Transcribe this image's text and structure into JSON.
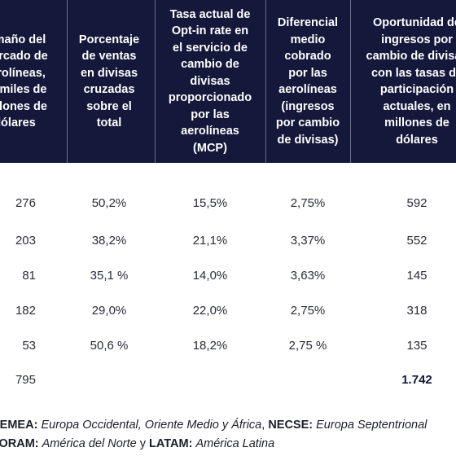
{
  "header": {
    "col0": "tamaño del\nmercado de\naerolíneas,\nen miles de\nmillones de\ndólares",
    "col1": "Porcentaje\nde ventas\nen divisas\ncruzadas\nsobre el\ntotal",
    "col2": "Tasa actual de\nOpt-in rate en\nel servicio de\ncambio de\ndivisas\nproporcionado\npor las\naerolíneas\n(MCP)",
    "col3": "Diferencial\nmedio\ncobrado\npor las\naerolíneas\n(ingresos\npor cambio\nde divisas)",
    "col4": "Oportunidad de\ningresos por\ncambio de divisas\ncon las tasas de\nparticipación\nactuales, en\nmillones de\ndólares"
  },
  "rows": [
    {
      "c0": "276",
      "c1": "50,2%",
      "c2": "15,5%",
      "c3": "2,75%",
      "c4": "592"
    },
    {
      "c0": "203",
      "c1": "38,2%",
      "c2": "21,1%",
      "c3": "3,37%",
      "c4": "552"
    },
    {
      "c0": "81",
      "c1": "35,1 %",
      "c2": "14,0%",
      "c3": "3,63%",
      "c4": "145"
    },
    {
      "c0": "182",
      "c1": "29,0%",
      "c2": "22,0%",
      "c3": "2,75%",
      "c4": "318"
    },
    {
      "c0": "53",
      "c1": "50,6 %",
      "c2": "18,2%",
      "c3": "2,75 %",
      "c4": "135"
    }
  ],
  "total": {
    "c0": "795",
    "c4": "1.742"
  },
  "notes": {
    "line1": [
      {
        "t": "WEMEA:",
        "s": "b"
      },
      {
        "t": " ",
        "s": ""
      },
      {
        "t": "Europa Occidental, Oriente Medio y África",
        "s": "i"
      },
      {
        "t": ", ",
        "s": ""
      },
      {
        "t": "NECSE:",
        "s": "b"
      },
      {
        "t": " ",
        "s": ""
      },
      {
        "t": "Europa Septentrional",
        "s": "i"
      }
    ],
    "line2": [
      {
        "t": "NORAM:",
        "s": "b"
      },
      {
        "t": " ",
        "s": ""
      },
      {
        "t": "América del Norte",
        "s": "i"
      },
      {
        "t": " y ",
        "s": ""
      },
      {
        "t": "LATAM:",
        "s": "b"
      },
      {
        "t": " ",
        "s": ""
      },
      {
        "t": "América Latina",
        "s": "i"
      }
    ]
  }
}
